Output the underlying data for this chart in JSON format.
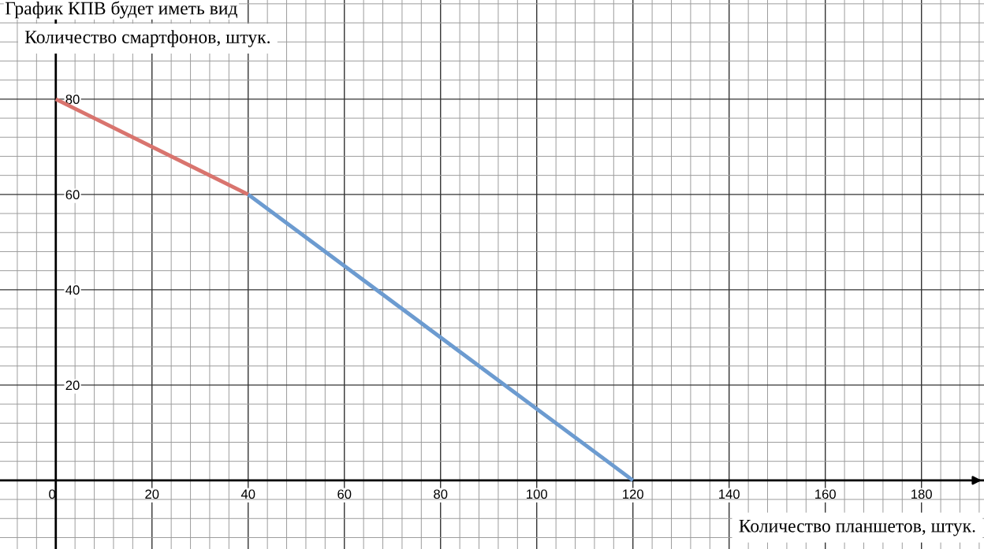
{
  "chart_data": {
    "type": "line",
    "title": "График КПВ будет иметь вид",
    "xlabel": "Количество планшетов, штук.",
    "ylabel": "Количество смартфонов, штук.",
    "series": [
      {
        "color": "#d9746e",
        "x": [
          0,
          40
        ],
        "values": [
          80,
          60
        ]
      },
      {
        "color": "#6c9bd0",
        "x": [
          40,
          120
        ],
        "values": [
          60,
          0
        ]
      }
    ],
    "xlim": [
      -11.6,
      193
    ],
    "ylim": [
      -14.4,
      100.8
    ],
    "xticks": [
      0,
      20,
      40,
      60,
      80,
      100,
      120,
      140,
      160,
      180
    ],
    "yticks": [
      20,
      40,
      60,
      80
    ],
    "grid": true,
    "legend": false,
    "marker": "none",
    "line_style": "solid"
  }
}
